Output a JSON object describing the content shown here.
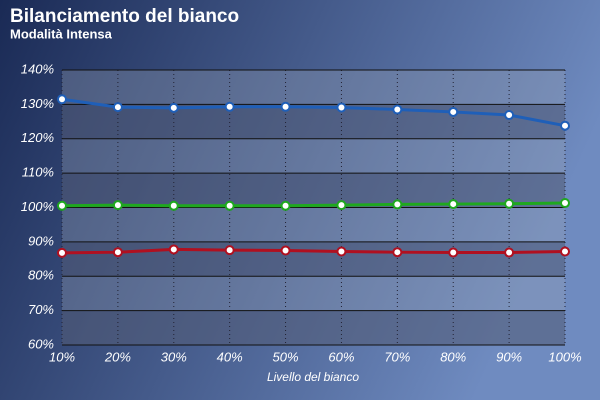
{
  "chart_data": {
    "type": "line",
    "title": "Bilanciamento del bianco",
    "subtitle": "Modalità Intensa",
    "x_label": "Livello del bianco",
    "categories": [
      "10%",
      "20%",
      "30%",
      "40%",
      "50%",
      "60%",
      "70%",
      "80%",
      "90%",
      "100%"
    ],
    "series": [
      {
        "color": "#1f5fb8",
        "values": [
          131.5,
          129.2,
          129.0,
          129.3,
          129.3,
          129.1,
          128.5,
          127.8,
          126.9,
          123.8
        ]
      },
      {
        "color": "#1fa81f",
        "values": [
          100.5,
          100.7,
          100.5,
          100.5,
          100.5,
          100.7,
          100.9,
          101.0,
          101.1,
          101.3
        ]
      },
      {
        "color": "#b01020",
        "values": [
          86.8,
          87.0,
          87.8,
          87.6,
          87.5,
          87.2,
          87.0,
          86.9,
          86.9,
          87.2
        ]
      }
    ],
    "ylim": [
      60,
      140
    ],
    "yticks": [
      {
        "value": 60,
        "label": "60%"
      },
      {
        "value": 70,
        "label": "70%"
      },
      {
        "value": 80,
        "label": "80%"
      },
      {
        "value": 90,
        "label": "90%"
      },
      {
        "value": 100,
        "label": "100%"
      },
      {
        "value": 110,
        "label": "110%"
      },
      {
        "value": 120,
        "label": "120%"
      },
      {
        "value": 130,
        "label": "130%"
      },
      {
        "value": 140,
        "label": "140%"
      }
    ],
    "grid": true
  }
}
